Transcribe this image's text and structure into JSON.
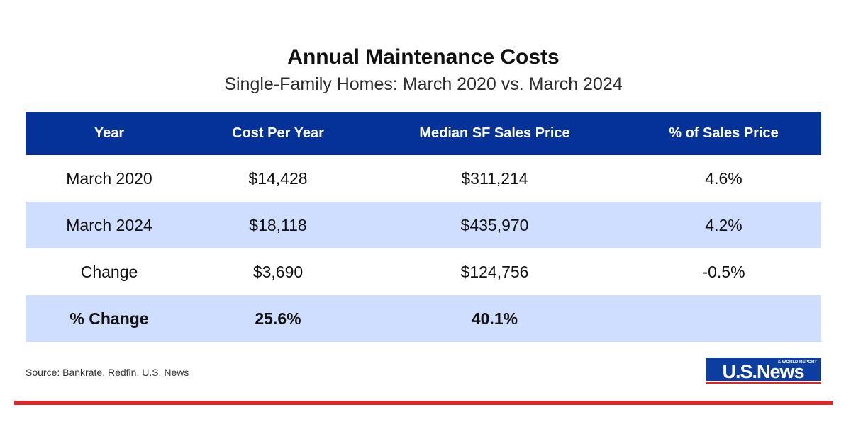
{
  "chart_data": {
    "type": "table",
    "title": "Annual Maintenance Costs",
    "subtitle": "Single-Family Homes: March 2020 vs. March 2024",
    "columns": [
      "Year",
      "Cost Per Year",
      "Median SF Sales Price",
      "% of Sales Price"
    ],
    "rows": [
      {
        "cells": [
          "March 2020",
          "$14,428",
          "$311,214",
          "4.6%"
        ],
        "shaded": false,
        "bold": false
      },
      {
        "cells": [
          "March 2024",
          "$18,118",
          "$435,970",
          "4.2%"
        ],
        "shaded": true,
        "bold": false
      },
      {
        "cells": [
          "Change",
          "$3,690",
          "$124,756",
          "-0.5%"
        ],
        "shaded": false,
        "bold": false
      },
      {
        "cells": [
          "% Change",
          "25.6%",
          "40.1%",
          ""
        ],
        "shaded": true,
        "bold": true
      }
    ]
  },
  "source": {
    "prefix": "Source: ",
    "links": [
      "Bankrate",
      "Redfin",
      "U.S. News"
    ],
    "separator": ", "
  },
  "logo": {
    "main": "USNews",
    "tag": "& WORLD REPORT",
    "dot": "."
  },
  "colors": {
    "header_bg": "#053299",
    "shaded_row": "#cfdefe",
    "rule": "#d42a2a",
    "logo_blue": "#0b3ea0",
    "logo_red": "#d42a2a"
  }
}
